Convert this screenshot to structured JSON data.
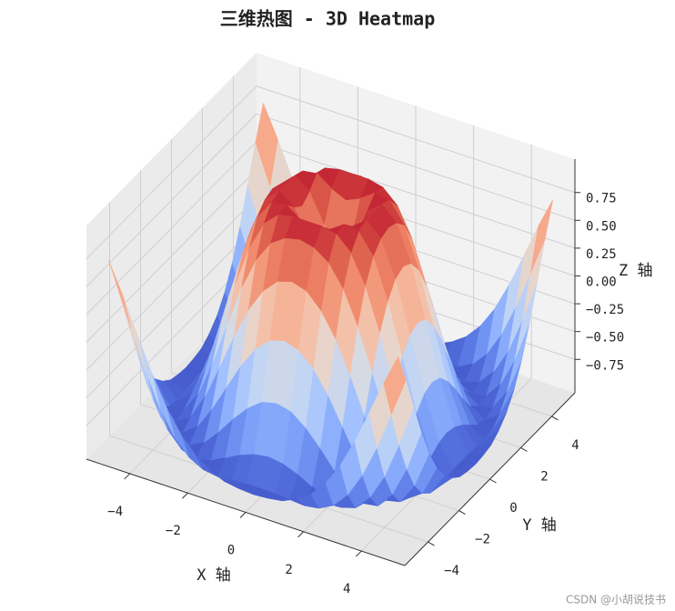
{
  "chart_data": {
    "type": "surface",
    "title": "三维热图 - 3D Heatmap",
    "xlabel": "X 轴",
    "ylabel": "Y 轴",
    "zlabel": "Z 轴",
    "colormap": "coolwarm",
    "grid": true,
    "x": [
      -5,
      -4.5,
      -4,
      -3.5,
      -3,
      -2.5,
      -2,
      -1.5,
      -1,
      -0.5,
      0,
      0.5,
      1,
      1.5,
      2,
      2.5,
      3,
      3.5,
      4,
      4.5,
      5
    ],
    "y": [
      -5,
      -4.5,
      -4,
      -3.5,
      -3,
      -2.5,
      -2,
      -1.5,
      -1,
      -0.5,
      0,
      0.5,
      1,
      1.5,
      2,
      2.5,
      3,
      3.5,
      4,
      4.5,
      5
    ],
    "z": [
      [
        0.71,
        0.43,
        0.12,
        -0.18,
        -0.44,
        -0.64,
        -0.78,
        -0.87,
        -0.93,
        -0.95,
        -0.96,
        -0.95,
        -0.93,
        -0.87,
        -0.78,
        -0.64,
        -0.44,
        -0.18,
        0.12,
        0.43,
        0.71
      ],
      [
        0.43,
        0.08,
        -0.26,
        -0.55,
        -0.77,
        -0.91,
        -0.98,
        -1.0,
        -0.99,
        -0.98,
        -0.98,
        -0.98,
        -0.99,
        -1.0,
        -0.98,
        -0.91,
        -0.77,
        -0.55,
        -0.26,
        0.08,
        0.43
      ],
      [
        0.12,
        -0.26,
        -0.59,
        -0.82,
        -0.96,
        -1.0,
        -0.97,
        -0.9,
        -0.83,
        -0.78,
        -0.76,
        -0.78,
        -0.83,
        -0.9,
        -0.97,
        -1.0,
        -0.96,
        -0.82,
        -0.59,
        -0.26,
        0.12
      ],
      [
        -0.18,
        -0.55,
        -0.82,
        -0.97,
        -0.99,
        -0.92,
        -0.78,
        -0.62,
        -0.48,
        -0.38,
        -0.35,
        -0.38,
        -0.48,
        -0.62,
        -0.78,
        -0.92,
        -0.99,
        -0.97,
        -0.82,
        -0.55,
        -0.18
      ],
      [
        -0.44,
        -0.77,
        -0.96,
        -0.99,
        -0.89,
        -0.69,
        -0.45,
        -0.21,
        -0.02,
        0.1,
        0.14,
        0.1,
        -0.02,
        -0.21,
        -0.45,
        -0.69,
        -0.89,
        -0.99,
        -0.96,
        -0.77,
        -0.44
      ],
      [
        -0.64,
        -0.91,
        -1.0,
        -0.92,
        -0.69,
        -0.38,
        -0.06,
        0.22,
        0.43,
        0.56,
        0.6,
        0.56,
        0.43,
        0.22,
        -0.06,
        -0.38,
        -0.69,
        -0.92,
        -1.0,
        -0.91,
        -0.64
      ],
      [
        -0.78,
        -0.98,
        -0.97,
        -0.78,
        -0.45,
        -0.06,
        0.31,
        0.6,
        0.79,
        0.88,
        0.91,
        0.88,
        0.79,
        0.6,
        0.31,
        -0.06,
        -0.45,
        -0.78,
        -0.97,
        -0.98,
        -0.78
      ],
      [
        -0.87,
        -1.0,
        -0.9,
        -0.62,
        -0.21,
        0.22,
        0.6,
        0.85,
        0.97,
        1.0,
        1.0,
        1.0,
        0.97,
        0.85,
        0.6,
        0.22,
        -0.21,
        -0.62,
        -0.9,
        -1.0,
        -0.87
      ],
      [
        -0.93,
        -0.99,
        -0.83,
        -0.48,
        -0.02,
        0.43,
        0.79,
        0.97,
        0.99,
        0.9,
        0.84,
        0.9,
        0.99,
        0.97,
        0.79,
        0.43,
        -0.02,
        -0.48,
        -0.83,
        -0.99,
        -0.93
      ],
      [
        -0.95,
        -0.98,
        -0.78,
        -0.38,
        0.1,
        0.56,
        0.88,
        1.0,
        0.9,
        0.65,
        0.48,
        0.65,
        0.9,
        1.0,
        0.88,
        0.56,
        0.1,
        -0.38,
        -0.78,
        -0.98,
        -0.95
      ],
      [
        -0.96,
        -0.98,
        -0.76,
        -0.35,
        0.14,
        0.6,
        0.91,
        1.0,
        0.84,
        0.48,
        0,
        0.48,
        0.84,
        1.0,
        0.91,
        0.6,
        0.14,
        -0.35,
        -0.76,
        -0.98,
        -0.96
      ],
      [
        -0.95,
        -0.98,
        -0.78,
        -0.38,
        0.1,
        0.56,
        0.88,
        1.0,
        0.9,
        0.65,
        0.48,
        0.65,
        0.9,
        1.0,
        0.88,
        0.56,
        0.1,
        -0.38,
        -0.78,
        -0.98,
        -0.95
      ],
      [
        -0.93,
        -0.99,
        -0.83,
        -0.48,
        -0.02,
        0.43,
        0.79,
        0.97,
        0.99,
        0.9,
        0.84,
        0.9,
        0.99,
        0.97,
        0.79,
        0.43,
        -0.02,
        -0.48,
        -0.83,
        -0.99,
        -0.93
      ],
      [
        -0.87,
        -1.0,
        -0.9,
        -0.62,
        -0.21,
        0.22,
        0.6,
        0.85,
        0.97,
        1.0,
        1.0,
        1.0,
        0.97,
        0.85,
        0.6,
        0.22,
        -0.21,
        -0.62,
        -0.9,
        -1.0,
        -0.87
      ],
      [
        -0.78,
        -0.98,
        -0.97,
        -0.78,
        -0.45,
        -0.06,
        0.31,
        0.6,
        0.79,
        0.88,
        0.91,
        0.88,
        0.79,
        0.6,
        0.31,
        -0.06,
        -0.45,
        -0.78,
        -0.97,
        -0.98,
        -0.78
      ],
      [
        -0.64,
        -0.91,
        -1.0,
        -0.92,
        -0.69,
        -0.38,
        -0.06,
        0.22,
        0.43,
        0.56,
        0.6,
        0.56,
        0.43,
        0.22,
        -0.06,
        -0.38,
        -0.69,
        -0.92,
        -1.0,
        -0.91,
        -0.64
      ],
      [
        -0.44,
        -0.77,
        -0.96,
        -0.99,
        -0.89,
        -0.69,
        -0.45,
        -0.21,
        -0.02,
        0.1,
        0.14,
        0.1,
        -0.02,
        -0.21,
        -0.45,
        -0.69,
        -0.89,
        -0.99,
        -0.96,
        -0.77,
        -0.44
      ],
      [
        -0.18,
        -0.55,
        -0.82,
        -0.97,
        -0.99,
        -0.92,
        -0.78,
        -0.62,
        -0.48,
        -0.38,
        -0.35,
        -0.38,
        -0.48,
        -0.62,
        -0.78,
        -0.92,
        -0.99,
        -0.97,
        -0.82,
        -0.55,
        -0.18
      ],
      [
        0.12,
        -0.26,
        -0.59,
        -0.82,
        -0.96,
        -1.0,
        -0.97,
        -0.9,
        -0.83,
        -0.78,
        -0.76,
        -0.78,
        -0.83,
        -0.9,
        -0.97,
        -1.0,
        -0.96,
        -0.82,
        -0.59,
        -0.26,
        0.12
      ],
      [
        0.43,
        0.08,
        -0.26,
        -0.55,
        -0.77,
        -0.91,
        -0.98,
        -1.0,
        -0.99,
        -0.98,
        -0.98,
        -0.98,
        -0.99,
        -1.0,
        -0.98,
        -0.91,
        -0.77,
        -0.55,
        -0.26,
        0.08,
        0.43
      ],
      [
        0.71,
        0.43,
        0.12,
        -0.18,
        -0.44,
        -0.64,
        -0.78,
        -0.87,
        -0.93,
        -0.95,
        -0.96,
        -0.95,
        -0.93,
        -0.87,
        -0.78,
        -0.64,
        -0.44,
        -0.18,
        0.12,
        0.43,
        0.71
      ]
    ],
    "xlim": [
      -5.5,
      5.5
    ],
    "ylim": [
      -5.5,
      5.5
    ],
    "zlim": [
      -1.05,
      1.05
    ],
    "xticks": [
      {
        "value": -4,
        "label": "−4"
      },
      {
        "value": -2,
        "label": "−2"
      },
      0,
      2,
      4
    ],
    "yticks": [
      {
        "value": -4,
        "label": "−4"
      },
      {
        "value": -2,
        "label": "−2"
      },
      0,
      2,
      4
    ],
    "zticks": [
      {
        "value": -0.75,
        "label": "−0.75"
      },
      {
        "value": -0.5,
        "label": "−0.50"
      },
      {
        "value": -0.25,
        "label": "−0.25"
      },
      {
        "value": 0,
        "label": "0.00"
      },
      {
        "value": 0.25,
        "label": "0.25"
      },
      {
        "value": 0.5,
        "label": "0.50"
      },
      {
        "value": 0.75,
        "label": "0.75"
      }
    ]
  },
  "watermark": "CSDN @小胡说技书"
}
